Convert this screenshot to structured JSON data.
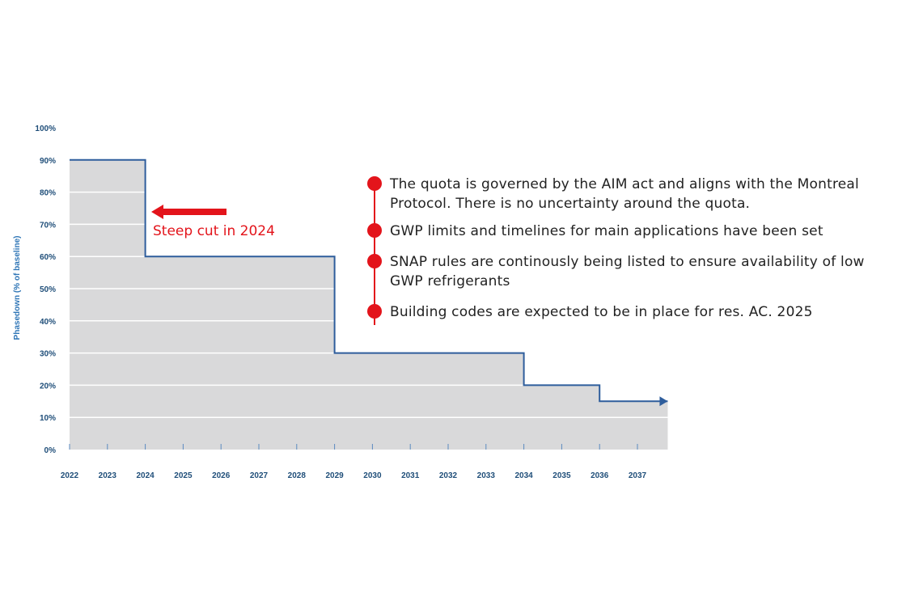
{
  "chart_data": {
    "type": "line",
    "step": true,
    "area_fill": true,
    "x_ticks": [
      "2022",
      "2023",
      "2024",
      "2025",
      "2026",
      "2027",
      "2028",
      "2029",
      "2030",
      "2031",
      "2032",
      "2033",
      "2034",
      "2035",
      "2036",
      "2037"
    ],
    "y_ticks": [
      "0%",
      "10%",
      "20%",
      "30%",
      "40%",
      "50%",
      "60%",
      "70%",
      "80%",
      "90%",
      "100%"
    ],
    "ylim": [
      0,
      100
    ],
    "xlim": [
      2022,
      2037.8
    ],
    "ylabel": "Phasedown (% of baseline)",
    "xlabel": "",
    "grid": true,
    "series": [
      {
        "points": [
          {
            "x": 2022,
            "y": 90
          },
          {
            "x": 2024,
            "y": 60
          },
          {
            "x": 2029,
            "y": 30
          },
          {
            "x": 2034,
            "y": 20
          },
          {
            "x": 2036,
            "y": 15
          },
          {
            "x": 2037.8,
            "y": 15
          }
        ]
      }
    ],
    "annotation": {
      "text": "Steep cut in 2024",
      "x": 2024
    }
  },
  "notes": [
    "The quota is governed by the AIM act and aligns with the Montreal Protocol. There is no uncertainty around the quota.",
    "GWP limits and timelines for main applications have been set",
    "SNAP rules are continously being listed to ensure availability of low GWP refrigerants",
    "Building codes are expected to be in place for res. AC. 2025"
  ],
  "colors": {
    "area": "#d9d9da",
    "line": "#2e5d9c",
    "grid": "#ffffff",
    "accent": "#e3141b"
  }
}
